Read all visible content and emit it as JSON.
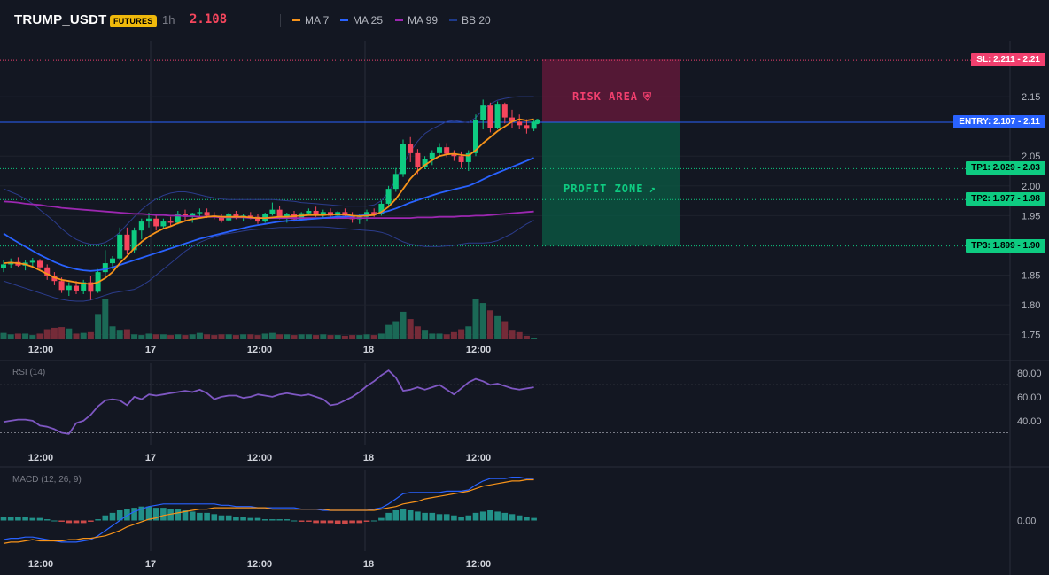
{
  "header": {
    "symbol": "TRUMP_USDT",
    "badge": "FUTURES",
    "timeframe": "1h",
    "last_price": "2.108"
  },
  "legend": [
    {
      "label": "MA 7",
      "color": "#f7931a"
    },
    {
      "label": "MA 25",
      "color": "#2962ff"
    },
    {
      "label": "MA 99",
      "color": "#9c27b0"
    },
    {
      "label": "BB 20",
      "color": "#1e3a8a"
    }
  ],
  "colors": {
    "up": "#0ecb81",
    "down": "#f6465d",
    "ma7": "#f7931a",
    "ma25": "#2962ff",
    "ma99": "#9c27b0",
    "bb": "#2b3c8c",
    "rsi": "#7e57c2",
    "macd": "#2962ff",
    "signal": "#f7931a"
  },
  "levels": {
    "sl": {
      "label": "SL: 2.211 - 2.21",
      "value": 2.211
    },
    "entry": {
      "label": "ENTRY: 2.107 - 2.11",
      "value": 2.107
    },
    "tp1": {
      "label": "TP1: 2.029 - 2.03",
      "value": 2.029
    },
    "tp2": {
      "label": "TP2: 1.977 - 1.98",
      "value": 1.977
    },
    "tp3": {
      "label": "TP3: 1.899 - 1.90",
      "value": 1.899
    }
  },
  "zones": {
    "risk_label": "RISK AREA",
    "profit_label": "PROFIT ZONE",
    "risk_icon": "shield-icon",
    "profit_icon": "rocket-icon"
  },
  "price_axis": [
    "2.15",
    "2.05",
    "2.00",
    "1.95",
    "1.85",
    "1.80",
    "1.75"
  ],
  "time_axis": [
    "12:00",
    "17",
    "12:00",
    "18",
    "12:00"
  ],
  "rsi": {
    "label": "RSI (14)",
    "ticks": [
      "80.00",
      "60.00",
      "40.00"
    ],
    "upper": 70,
    "lower": 30
  },
  "macd": {
    "label": "MACD (12, 26, 9)",
    "ticks": [
      "0.00"
    ]
  },
  "chart_data": {
    "type": "candlestick",
    "candles": [
      [
        1.862,
        1.876,
        1.855,
        1.868
      ],
      [
        1.868,
        1.878,
        1.862,
        1.872
      ],
      [
        1.872,
        1.88,
        1.864,
        1.866
      ],
      [
        1.866,
        1.875,
        1.858,
        1.871
      ],
      [
        1.871,
        1.879,
        1.865,
        1.874
      ],
      [
        1.874,
        1.877,
        1.86,
        1.863
      ],
      [
        1.863,
        1.868,
        1.842,
        1.848
      ],
      [
        1.848,
        1.855,
        1.833,
        1.84
      ],
      [
        1.84,
        1.846,
        1.82,
        1.825
      ],
      [
        1.825,
        1.838,
        1.815,
        1.832
      ],
      [
        1.832,
        1.84,
        1.818,
        1.824
      ],
      [
        1.824,
        1.842,
        1.818,
        1.838
      ],
      [
        1.838,
        1.848,
        1.808,
        1.822
      ],
      [
        1.822,
        1.86,
        1.82,
        1.855
      ],
      [
        1.855,
        1.892,
        1.848,
        1.87
      ],
      [
        1.87,
        1.882,
        1.86,
        1.878
      ],
      [
        1.878,
        1.93,
        1.875,
        1.918
      ],
      [
        1.918,
        1.93,
        1.885,
        1.892
      ],
      [
        1.892,
        1.93,
        1.888,
        1.925
      ],
      [
        1.925,
        1.945,
        1.91,
        1.94
      ],
      [
        1.94,
        1.955,
        1.93,
        1.945
      ],
      [
        1.945,
        1.95,
        1.925,
        1.932
      ],
      [
        1.932,
        1.945,
        1.928,
        1.94
      ],
      [
        1.94,
        1.948,
        1.932,
        1.938
      ],
      [
        1.938,
        1.958,
        1.935,
        1.952
      ],
      [
        1.952,
        1.96,
        1.942,
        1.948
      ],
      [
        1.948,
        1.955,
        1.938,
        1.954
      ],
      [
        1.954,
        1.962,
        1.948,
        1.956
      ],
      [
        1.956,
        1.962,
        1.946,
        1.95
      ],
      [
        1.95,
        1.956,
        1.944,
        1.948
      ],
      [
        1.948,
        1.952,
        1.938,
        1.942
      ],
      [
        1.942,
        1.955,
        1.94,
        1.952
      ],
      [
        1.952,
        1.958,
        1.944,
        1.947
      ],
      [
        1.947,
        1.953,
        1.94,
        1.95
      ],
      [
        1.95,
        1.956,
        1.944,
        1.948
      ],
      [
        1.948,
        1.952,
        1.936,
        1.94
      ],
      [
        1.94,
        1.955,
        1.938,
        1.953
      ],
      [
        1.953,
        1.972,
        1.95,
        1.96
      ],
      [
        1.96,
        1.966,
        1.944,
        1.948
      ],
      [
        1.948,
        1.955,
        1.938,
        1.952
      ],
      [
        1.952,
        1.958,
        1.94,
        1.944
      ],
      [
        1.944,
        1.956,
        1.942,
        1.954
      ],
      [
        1.954,
        1.962,
        1.95,
        1.958
      ],
      [
        1.958,
        1.965,
        1.948,
        1.952
      ],
      [
        1.952,
        1.96,
        1.946,
        1.956
      ],
      [
        1.956,
        1.962,
        1.948,
        1.95
      ],
      [
        1.95,
        1.958,
        1.944,
        1.956
      ],
      [
        1.956,
        1.962,
        1.946,
        1.95
      ],
      [
        1.95,
        1.956,
        1.938,
        1.944
      ],
      [
        1.944,
        1.952,
        1.936,
        1.948
      ],
      [
        1.948,
        1.96,
        1.94,
        1.956
      ],
      [
        1.956,
        1.962,
        1.948,
        1.952
      ],
      [
        1.952,
        1.975,
        1.95,
        1.97
      ],
      [
        1.97,
        2.0,
        1.965,
        1.995
      ],
      [
        1.995,
        2.03,
        1.99,
        2.02
      ],
      [
        2.02,
        2.078,
        2.015,
        2.07
      ],
      [
        2.07,
        2.082,
        2.04,
        2.055
      ],
      [
        2.055,
        2.062,
        2.02,
        2.032
      ],
      [
        2.032,
        2.05,
        2.028,
        2.045
      ],
      [
        2.045,
        2.06,
        2.035,
        2.055
      ],
      [
        2.055,
        2.072,
        2.05,
        2.065
      ],
      [
        2.065,
        2.072,
        2.048,
        2.054
      ],
      [
        2.054,
        2.06,
        2.042,
        2.05
      ],
      [
        2.05,
        2.058,
        2.03,
        2.04
      ],
      [
        2.04,
        2.06,
        2.025,
        2.055
      ],
      [
        2.055,
        2.12,
        2.05,
        2.11
      ],
      [
        2.11,
        2.145,
        2.095,
        2.135
      ],
      [
        2.135,
        2.14,
        2.09,
        2.098
      ],
      [
        2.098,
        2.142,
        2.095,
        2.138
      ],
      [
        2.138,
        2.14,
        2.105,
        2.115
      ],
      [
        2.115,
        2.128,
        2.098,
        2.108
      ],
      [
        2.108,
        2.12,
        2.095,
        2.102
      ],
      [
        2.102,
        2.112,
        2.088,
        2.096
      ],
      [
        2.096,
        2.112,
        2.092,
        2.108
      ]
    ],
    "volume": [
      9,
      7,
      8,
      8,
      6,
      8,
      14,
      16,
      17,
      15,
      8,
      9,
      10,
      35,
      55,
      18,
      12,
      14,
      7,
      6,
      8,
      7,
      7,
      6,
      7,
      6,
      7,
      9,
      7,
      6,
      7,
      7,
      6,
      7,
      7,
      6,
      8,
      9,
      7,
      7,
      6,
      7,
      7,
      6,
      7,
      6,
      6,
      5,
      6,
      6,
      7,
      6,
      8,
      20,
      25,
      38,
      28,
      18,
      12,
      8,
      8,
      7,
      10,
      14,
      18,
      55,
      50,
      40,
      32,
      25,
      12,
      10,
      5,
      2
    ],
    "ma7": [
      1.87,
      1.871,
      1.87,
      1.868,
      1.864,
      1.858,
      1.852,
      1.846,
      1.842,
      1.84,
      1.838,
      1.836,
      1.835,
      1.838,
      1.845,
      1.855,
      1.87,
      1.882,
      1.895,
      1.906,
      1.915,
      1.922,
      1.928,
      1.932,
      1.937,
      1.941,
      1.944,
      1.946,
      1.948,
      1.949,
      1.948,
      1.948,
      1.948,
      1.948,
      1.947,
      1.946,
      1.946,
      1.947,
      1.948,
      1.948,
      1.949,
      1.95,
      1.951,
      1.951,
      1.951,
      1.952,
      1.952,
      1.952,
      1.95,
      1.949,
      1.95,
      1.951,
      1.956,
      1.965,
      1.978,
      1.995,
      2.012,
      2.025,
      2.035,
      2.043,
      2.05,
      2.053,
      2.054,
      2.052,
      2.051,
      2.06,
      2.072,
      2.082,
      2.092,
      2.1,
      2.108,
      2.112,
      2.11,
      2.112
    ],
    "ma25": [
      1.92,
      1.912,
      1.905,
      1.898,
      1.891,
      1.884,
      1.878,
      1.872,
      1.867,
      1.863,
      1.86,
      1.858,
      1.857,
      1.858,
      1.86,
      1.863,
      1.867,
      1.871,
      1.875,
      1.879,
      1.883,
      1.887,
      1.891,
      1.895,
      1.899,
      1.903,
      1.907,
      1.911,
      1.914,
      1.917,
      1.92,
      1.923,
      1.926,
      1.929,
      1.932,
      1.934,
      1.936,
      1.938,
      1.94,
      1.941,
      1.942,
      1.943,
      1.944,
      1.945,
      1.946,
      1.947,
      1.948,
      1.948,
      1.949,
      1.95,
      1.951,
      1.952,
      1.955,
      1.958,
      1.962,
      1.967,
      1.972,
      1.976,
      1.98,
      1.984,
      1.988,
      1.991,
      1.994,
      1.997,
      2.0,
      2.005,
      2.011,
      2.017,
      2.022,
      2.027,
      2.032,
      2.037,
      2.042,
      2.047
    ],
    "ma99": [
      1.974,
      1.973,
      1.972,
      1.97,
      1.969,
      1.968,
      1.966,
      1.965,
      1.963,
      1.962,
      1.961,
      1.96,
      1.959,
      1.958,
      1.957,
      1.956,
      1.955,
      1.954,
      1.953,
      1.953,
      1.952,
      1.951,
      1.951,
      1.95,
      1.95,
      1.949,
      1.949,
      1.948,
      1.948,
      1.948,
      1.947,
      1.947,
      1.947,
      1.947,
      1.946,
      1.946,
      1.946,
      1.946,
      1.946,
      1.946,
      1.946,
      1.946,
      1.946,
      1.946,
      1.946,
      1.946,
      1.946,
      1.946,
      1.946,
      1.946,
      1.946,
      1.946,
      1.946,
      1.946,
      1.946,
      1.946,
      1.946,
      1.947,
      1.947,
      1.947,
      1.948,
      1.948,
      1.948,
      1.949,
      1.949,
      1.95,
      1.95,
      1.951,
      1.952,
      1.953,
      1.954,
      1.955,
      1.956,
      1.957
    ],
    "bb_upper": [
      1.995,
      1.99,
      1.985,
      1.978,
      1.97,
      1.96,
      1.95,
      1.94,
      1.928,
      1.918,
      1.91,
      1.905,
      1.902,
      1.902,
      1.905,
      1.912,
      1.922,
      1.935,
      1.948,
      1.96,
      1.97,
      1.978,
      1.984,
      1.988,
      1.99,
      1.99,
      1.988,
      1.985,
      1.982,
      1.98,
      1.978,
      1.977,
      1.977,
      1.977,
      1.977,
      1.977,
      1.977,
      1.977,
      1.976,
      1.975,
      1.974,
      1.972,
      1.971,
      1.97,
      1.969,
      1.968,
      1.967,
      1.966,
      1.966,
      1.966,
      1.966,
      1.968,
      1.975,
      1.99,
      2.01,
      2.035,
      2.058,
      2.075,
      2.088,
      2.096,
      2.102,
      2.108,
      2.11,
      2.108,
      2.106,
      2.115,
      2.128,
      2.138,
      2.144,
      2.147,
      2.149,
      2.15,
      2.15,
      2.15
    ],
    "bb_lower": [
      1.84,
      1.836,
      1.832,
      1.828,
      1.824,
      1.82,
      1.816,
      1.812,
      1.809,
      1.807,
      1.806,
      1.806,
      1.808,
      1.812,
      1.816,
      1.82,
      1.822,
      1.824,
      1.826,
      1.832,
      1.84,
      1.85,
      1.86,
      1.87,
      1.88,
      1.89,
      1.898,
      1.905,
      1.91,
      1.914,
      1.918,
      1.92,
      1.922,
      1.924,
      1.926,
      1.927,
      1.928,
      1.929,
      1.93,
      1.93,
      1.93,
      1.931,
      1.931,
      1.931,
      1.931,
      1.93,
      1.929,
      1.928,
      1.927,
      1.926,
      1.925,
      1.924,
      1.922,
      1.918,
      1.912,
      1.906,
      1.902,
      1.9,
      1.898,
      1.898,
      1.898,
      1.899,
      1.9,
      1.902,
      1.904,
      1.904,
      1.904,
      1.905,
      1.908,
      1.914,
      1.92,
      1.928,
      1.936,
      1.942
    ],
    "rsi": [
      39,
      40,
      41,
      41,
      40,
      36,
      35,
      33,
      30,
      29,
      38,
      40,
      45,
      52,
      57,
      58,
      57,
      53,
      60,
      58,
      62,
      61,
      62,
      63,
      64,
      65,
      64,
      66,
      63,
      58,
      60,
      61,
      61,
      59,
      60,
      62,
      61,
      60,
      62,
      63,
      62,
      61,
      62,
      60,
      58,
      53,
      54,
      57,
      60,
      64,
      69,
      73,
      78,
      82,
      76,
      65,
      66,
      68,
      66,
      68,
      70,
      66,
      62,
      67,
      72,
      75,
      73,
      70,
      71,
      69,
      67,
      66,
      67,
      68
    ],
    "macd_hist": [
      0.003,
      0.003,
      0.003,
      0.003,
      0.002,
      0.002,
      0.001,
      0.0,
      -0.001,
      -0.002,
      -0.002,
      -0.002,
      -0.001,
      0.001,
      0.004,
      0.006,
      0.008,
      0.009,
      0.01,
      0.011,
      0.011,
      0.01,
      0.01,
      0.009,
      0.009,
      0.008,
      0.007,
      0.006,
      0.006,
      0.005,
      0.004,
      0.004,
      0.003,
      0.003,
      0.002,
      0.002,
      0.001,
      0.001,
      0.001,
      0.001,
      0.0,
      -0.001,
      -0.001,
      -0.002,
      -0.002,
      -0.002,
      -0.003,
      -0.003,
      -0.002,
      -0.002,
      -0.001,
      0.0,
      0.002,
      0.006,
      0.008,
      0.009,
      0.008,
      0.007,
      0.006,
      0.006,
      0.005,
      0.005,
      0.004,
      0.003,
      0.004,
      0.006,
      0.007,
      0.008,
      0.007,
      0.006,
      0.005,
      0.004,
      0.003,
      0.002
    ],
    "macd_line": [
      -0.015,
      -0.014,
      -0.014,
      -0.013,
      -0.013,
      -0.014,
      -0.015,
      -0.016,
      -0.017,
      -0.017,
      -0.017,
      -0.016,
      -0.015,
      -0.012,
      -0.008,
      -0.004,
      0.0,
      0.004,
      0.007,
      0.009,
      0.011,
      0.012,
      0.013,
      0.013,
      0.013,
      0.013,
      0.013,
      0.013,
      0.013,
      0.013,
      0.012,
      0.012,
      0.011,
      0.011,
      0.011,
      0.01,
      0.01,
      0.01,
      0.01,
      0.01,
      0.01,
      0.009,
      0.009,
      0.009,
      0.008,
      0.008,
      0.008,
      0.008,
      0.008,
      0.008,
      0.008,
      0.009,
      0.01,
      0.013,
      0.017,
      0.021,
      0.022,
      0.022,
      0.022,
      0.022,
      0.022,
      0.023,
      0.023,
      0.023,
      0.024,
      0.028,
      0.031,
      0.033,
      0.033,
      0.033,
      0.034,
      0.034,
      0.033,
      0.033
    ],
    "signal_line": [
      -0.018,
      -0.017,
      -0.017,
      -0.016,
      -0.015,
      -0.016,
      -0.016,
      -0.016,
      -0.016,
      -0.015,
      -0.015,
      -0.014,
      -0.014,
      -0.013,
      -0.012,
      -0.01,
      -0.008,
      -0.005,
      -0.003,
      -0.001,
      0.001,
      0.002,
      0.004,
      0.005,
      0.006,
      0.007,
      0.008,
      0.009,
      0.009,
      0.01,
      0.01,
      0.01,
      0.01,
      0.01,
      0.01,
      0.01,
      0.01,
      0.009,
      0.009,
      0.009,
      0.009,
      0.009,
      0.009,
      0.009,
      0.009,
      0.008,
      0.008,
      0.008,
      0.008,
      0.008,
      0.008,
      0.008,
      0.009,
      0.01,
      0.011,
      0.013,
      0.014,
      0.015,
      0.017,
      0.018,
      0.019,
      0.02,
      0.021,
      0.022,
      0.023,
      0.025,
      0.027,
      0.028,
      0.029,
      0.03,
      0.031,
      0.031,
      0.032,
      0.032
    ]
  }
}
